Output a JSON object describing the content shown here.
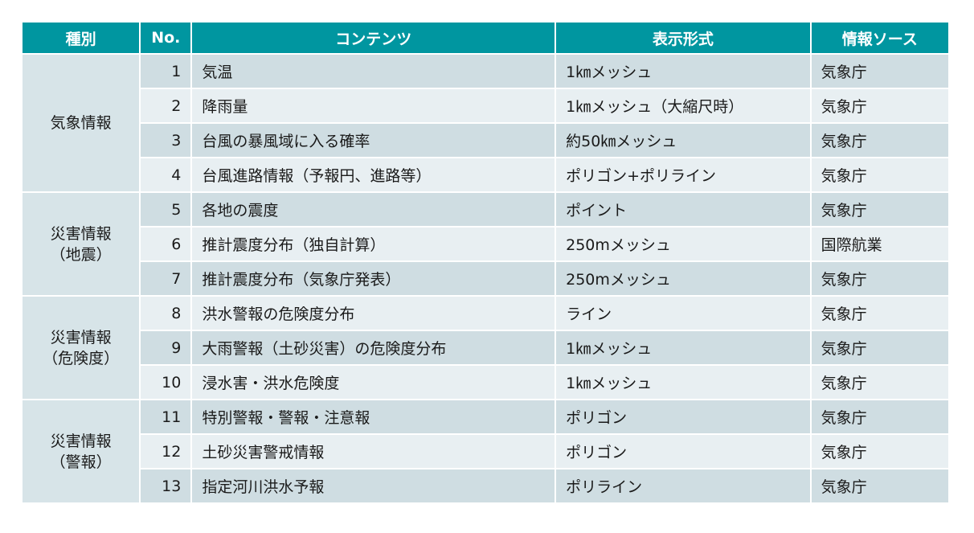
{
  "header": {
    "kind": "種別",
    "no": "No.",
    "content": "コンテンツ",
    "format": "表示形式",
    "source": "情報ソース"
  },
  "groups": [
    {
      "kind_lines": [
        "気象情報",
        ""
      ]
    },
    {
      "kind_lines": [
        "災害情報",
        "（地震）"
      ]
    },
    {
      "kind_lines": [
        "災害情報",
        "（危険度）"
      ]
    },
    {
      "kind_lines": [
        "災害情報",
        "（警報）"
      ]
    }
  ],
  "rows": [
    {
      "no": "1",
      "content": "気温",
      "format": "1㎞メッシュ",
      "source": "気象庁"
    },
    {
      "no": "2",
      "content": "降雨量",
      "format": "1㎞メッシュ（大縮尺時）",
      "source": "気象庁"
    },
    {
      "no": "3",
      "content": "台風の暴風域に入る確率",
      "format": "約50㎞メッシュ",
      "source": "気象庁"
    },
    {
      "no": "4",
      "content": "台風進路情報（予報円、進路等）",
      "format": "ポリゴン+ポリライン",
      "source": "気象庁"
    },
    {
      "no": "5",
      "content": "各地の震度",
      "format": "ポイント",
      "source": "気象庁"
    },
    {
      "no": "6",
      "content": "推計震度分布（独自計算）",
      "format": "250mメッシュ",
      "source": "国際航業"
    },
    {
      "no": "7",
      "content": "推計震度分布（気象庁発表）",
      "format": "250mメッシュ",
      "source": "気象庁"
    },
    {
      "no": "8",
      "content": "洪水警報の危険度分布",
      "format": "ライン",
      "source": "気象庁"
    },
    {
      "no": "9",
      "content": "大雨警報（土砂災害）の危険度分布",
      "format": "1㎞メッシュ",
      "source": "気象庁"
    },
    {
      "no": "10",
      "content": "浸水害・洪水危険度",
      "format": "1㎞メッシュ",
      "source": "気象庁"
    },
    {
      "no": "11",
      "content": "特別警報・警報・注意報",
      "format": "ポリゴン",
      "source": "気象庁"
    },
    {
      "no": "12",
      "content": "土砂災害警戒情報",
      "format": "ポリゴン",
      "source": "気象庁"
    },
    {
      "no": "13",
      "content": "指定河川洪水予報",
      "format": "ポリライン",
      "source": "気象庁"
    }
  ]
}
